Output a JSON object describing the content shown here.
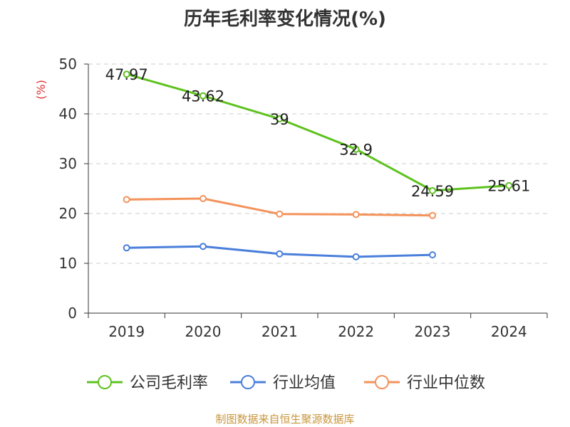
{
  "chart_data": {
    "type": "line",
    "title": "历年毛利率变化情况(%)",
    "ylabel": "(%)",
    "categories": [
      "2019",
      "2020",
      "2021",
      "2022",
      "2023",
      "2024"
    ],
    "ylim": [
      0,
      50
    ],
    "yticks": [
      0,
      10,
      20,
      30,
      40,
      50
    ],
    "grid": true,
    "legend_position": "bottom",
    "series": [
      {
        "name": "公司毛利率",
        "color": "#5ec21e",
        "show_labels": true,
        "values": [
          47.97,
          43.62,
          39,
          32.9,
          24.59,
          25.61
        ],
        "labels": [
          "47.97",
          "43.62",
          "39",
          "32.9",
          "24.59",
          "25.61"
        ]
      },
      {
        "name": "行业均值",
        "color": "#4a7fdb",
        "show_labels": false,
        "values": [
          13.1,
          13.4,
          11.9,
          11.3,
          11.7,
          null
        ]
      },
      {
        "name": "行业中位数",
        "color": "#f4925a",
        "show_labels": false,
        "values": [
          22.8,
          23.0,
          19.9,
          19.8,
          19.6,
          null
        ]
      }
    ]
  },
  "source": "制图数据来自恒生聚源数据库"
}
